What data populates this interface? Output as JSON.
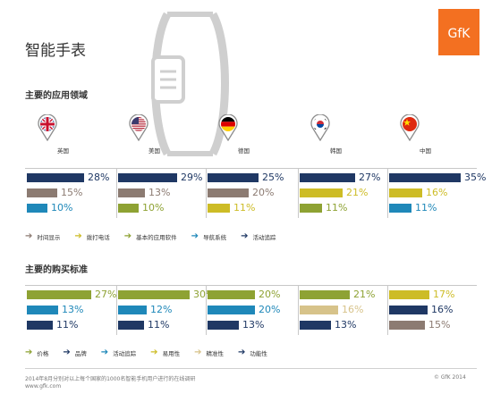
{
  "title": "智能手表",
  "logo_text": "GfK",
  "colors": {
    "navy": "#1f3864",
    "taupe": "#8c7b72",
    "blue": "#1f88b9",
    "olive": "#8ea233",
    "gold": "#cdbc26",
    "tan": "#d7c38a",
    "orange": "#f37021"
  },
  "countries": [
    {
      "label": "英国",
      "flag": "uk-flag"
    },
    {
      "label": "美国",
      "flag": "us-flag"
    },
    {
      "label": "德国",
      "flag": "germany-flag"
    },
    {
      "label": "韩国",
      "flag": "korea-flag"
    },
    {
      "label": "中国",
      "flag": "china-flag"
    }
  ],
  "chart_data": [
    {
      "type": "bar",
      "title": "主要的应用领域",
      "legend": [
        {
          "name": "时间显示",
          "color": "#8c7b72"
        },
        {
          "name": "拨打电话",
          "color": "#cdbc26"
        },
        {
          "name": "基本的应用软件",
          "color": "#8ea233"
        },
        {
          "name": "导航系统",
          "color": "#1f88b9"
        },
        {
          "name": "活动追踪",
          "color": "#1f3864"
        }
      ],
      "max_value": 35,
      "groups": [
        {
          "country": "英国",
          "bars": [
            {
              "label": "28%",
              "value": 28,
              "color": "#1f3864"
            },
            {
              "label": "15%",
              "value": 15,
              "color": "#8c7b72"
            },
            {
              "label": "10%",
              "value": 10,
              "color": "#1f88b9"
            }
          ]
        },
        {
          "country": "美国",
          "bars": [
            {
              "label": "29%",
              "value": 29,
              "color": "#1f3864"
            },
            {
              "label": "13%",
              "value": 13,
              "color": "#8c7b72"
            },
            {
              "label": "10%",
              "value": 10,
              "color": "#8ea233"
            }
          ]
        },
        {
          "country": "德国",
          "bars": [
            {
              "label": "25%",
              "value": 25,
              "color": "#1f3864"
            },
            {
              "label": "20%",
              "value": 20,
              "color": "#8c7b72"
            },
            {
              "label": "11%",
              "value": 11,
              "color": "#cdbc26"
            }
          ]
        },
        {
          "country": "韩国",
          "bars": [
            {
              "label": "27%",
              "value": 27,
              "color": "#1f3864"
            },
            {
              "label": "21%",
              "value": 21,
              "color": "#cdbc26"
            },
            {
              "label": "11%",
              "value": 11,
              "color": "#8ea233"
            }
          ]
        },
        {
          "country": "中国",
          "bars": [
            {
              "label": "35%",
              "value": 35,
              "color": "#1f3864"
            },
            {
              "label": "16%",
              "value": 16,
              "color": "#cdbc26"
            },
            {
              "label": "11%",
              "value": 11,
              "color": "#1f88b9"
            }
          ]
        }
      ]
    },
    {
      "type": "bar",
      "title": "主要的购买标准",
      "legend": [
        {
          "name": "价格",
          "color": "#8ea233"
        },
        {
          "name": "品牌",
          "color": "#1f3864"
        },
        {
          "name": "活动追踪",
          "color": "#1f88b9"
        },
        {
          "name": "易用性",
          "color": "#cdbc26"
        },
        {
          "name": "精准性",
          "color": "#d7c38a"
        },
        {
          "name": "功能性",
          "color": "#1f3864"
        }
      ],
      "max_value": 30,
      "groups": [
        {
          "country": "英国",
          "bars": [
            {
              "label": "27%",
              "value": 27,
              "color": "#8ea233"
            },
            {
              "label": "13%",
              "value": 13,
              "color": "#1f88b9"
            },
            {
              "label": "11%",
              "value": 11,
              "color": "#1f3864"
            }
          ]
        },
        {
          "country": "美国",
          "bars": [
            {
              "label": "30%",
              "value": 30,
              "color": "#8ea233"
            },
            {
              "label": "12%",
              "value": 12,
              "color": "#1f88b9"
            },
            {
              "label": "11%",
              "value": 11,
              "color": "#1f3864"
            }
          ]
        },
        {
          "country": "德国",
          "bars": [
            {
              "label": "20%",
              "value": 20,
              "color": "#8ea233"
            },
            {
              "label": "20%",
              "value": 20,
              "color": "#1f88b9"
            },
            {
              "label": "13%",
              "value": 13,
              "color": "#1f3864"
            }
          ]
        },
        {
          "country": "韩国",
          "bars": [
            {
              "label": "21%",
              "value": 21,
              "color": "#8ea233"
            },
            {
              "label": "16%",
              "value": 16,
              "color": "#d7c38a"
            },
            {
              "label": "13%",
              "value": 13,
              "color": "#1f3864"
            }
          ]
        },
        {
          "country": "中国",
          "bars": [
            {
              "label": "17%",
              "value": 17,
              "color": "#cdbc26"
            },
            {
              "label": "16%",
              "value": 16,
              "color": "#1f3864"
            },
            {
              "label": "15%",
              "value": 15,
              "color": "#8c7b72"
            }
          ]
        }
      ]
    }
  ],
  "footer": {
    "note": "2014年8月分别对以上每个国家的1000名智能手机用户进行的在线调研",
    "url": "www.gfk.com",
    "copyright": "© GfK 2014"
  }
}
